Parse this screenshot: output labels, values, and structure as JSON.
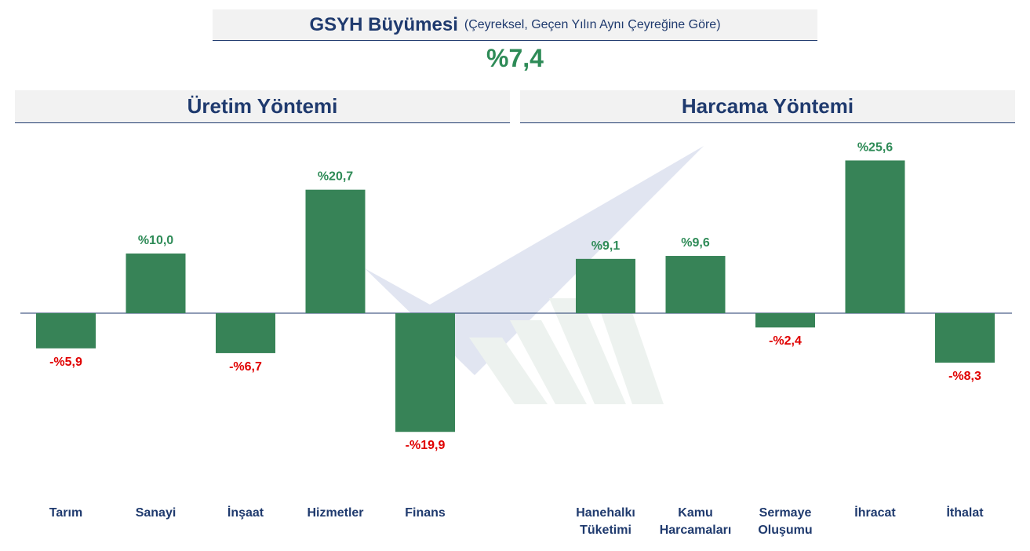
{
  "header": {
    "title": "GSYH Büyümesi",
    "subtitle": "(Çeyreksel, Geçen Yılın Aynı Çeyreğine Göre)",
    "headline_value": "%7,4"
  },
  "sections": {
    "left_title": "Üretim Yöntemi",
    "right_title": "Harcama Yöntemi"
  },
  "colors": {
    "bar": "#378357",
    "positive_label": "#2e8b57",
    "negative_label": "#e00000",
    "title": "#1f3a6e"
  },
  "chart_data": [
    {
      "type": "bar",
      "title": "Üretim Yöntemi",
      "categories": [
        [
          "Tarım"
        ],
        [
          "Sanayi"
        ],
        [
          "İnşaat"
        ],
        [
          "Hizmetler"
        ],
        [
          "Finans"
        ]
      ],
      "values": [
        -5.9,
        10.0,
        -6.7,
        20.7,
        -19.9
      ],
      "labels": [
        "-%5,9",
        "%10,0",
        "-%6,7",
        "%20,7",
        "-%19,9"
      ],
      "ylim": [
        -25,
        30
      ],
      "grid": false,
      "legend": "none"
    },
    {
      "type": "bar",
      "title": "Harcama Yöntemi",
      "categories": [
        [
          "Hanehalkı",
          "Tüketimi"
        ],
        [
          "Kamu",
          "Harcamaları"
        ],
        [
          "Sermaye",
          "Oluşumu"
        ],
        [
          "İhracat"
        ],
        [
          "İthalat"
        ]
      ],
      "values": [
        9.1,
        9.6,
        -2.4,
        25.6,
        -8.3
      ],
      "labels": [
        "%9,1",
        "%9,6",
        "-%2,4",
        "%25,6",
        "-%8,3"
      ],
      "ylim": [
        -25,
        30
      ],
      "grid": false,
      "legend": "none"
    }
  ]
}
